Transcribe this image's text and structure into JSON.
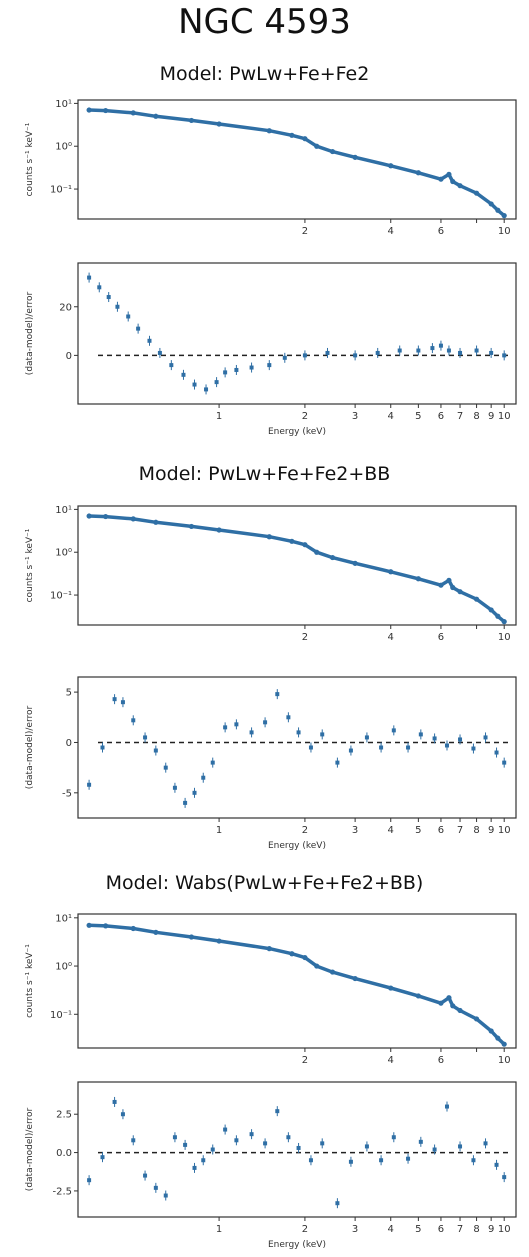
{
  "title": "NGC 4593",
  "chart_data": [
    {
      "type": "scatter",
      "model_title": "Model: PwLw+Fe+Fe2",
      "xscale": "log",
      "xlim": [
        0.32,
        11
      ],
      "xlabel": "Energy (keV)",
      "spectrum": {
        "ylabel": "counts s⁻¹ keV⁻¹",
        "yscale": "log",
        "ylim": [
          0.02,
          12
        ],
        "yticks": [
          {
            "v": 10,
            "label": "10¹"
          },
          {
            "v": 1,
            "label": "10⁰"
          },
          {
            "v": 0.1,
            "label": "10⁻¹"
          }
        ],
        "xticks": [
          {
            "v": 2,
            "label": "2"
          },
          {
            "v": 4,
            "label": "4"
          },
          {
            "v": 6,
            "label": "6"
          },
          {
            "v": 8,
            "label": ""
          },
          {
            "v": 10,
            "label": "10"
          }
        ],
        "x": [
          0.35,
          0.4,
          0.5,
          0.6,
          0.8,
          1.0,
          1.5,
          1.8,
          2.0,
          2.2,
          2.5,
          3.0,
          4.0,
          5.0,
          6.0,
          6.4,
          6.6,
          7.0,
          8.0,
          9.0,
          9.5,
          10.0
        ],
        "y": [
          7.0,
          6.8,
          6.0,
          5.0,
          4.0,
          3.3,
          2.3,
          1.8,
          1.5,
          1.0,
          0.75,
          0.55,
          0.35,
          0.24,
          0.17,
          0.22,
          0.15,
          0.12,
          0.08,
          0.045,
          0.032,
          0.024
        ]
      },
      "residuals": {
        "ylabel": "(data-model)/error",
        "ylim": [
          -20,
          38
        ],
        "yticks": [
          {
            "v": 20,
            "label": "20"
          },
          {
            "v": 0,
            "label": "0"
          }
        ],
        "xticks": [
          {
            "v": 1,
            "label": "1"
          },
          {
            "v": 2,
            "label": "2"
          },
          {
            "v": 3,
            "label": "3"
          },
          {
            "v": 4,
            "label": "4"
          },
          {
            "v": 5,
            "label": "5"
          },
          {
            "v": 6,
            "label": "6"
          },
          {
            "v": 7,
            "label": "7"
          },
          {
            "v": 8,
            "label": "8"
          },
          {
            "v": 9,
            "label": "9"
          },
          {
            "v": 10,
            "label": "10"
          }
        ],
        "x": [
          0.35,
          0.38,
          0.41,
          0.44,
          0.48,
          0.52,
          0.57,
          0.62,
          0.68,
          0.75,
          0.82,
          0.9,
          0.98,
          1.05,
          1.15,
          1.3,
          1.5,
          1.7,
          2.0,
          2.4,
          3.0,
          3.6,
          4.3,
          5.0,
          5.6,
          6.0,
          6.4,
          7.0,
          8.0,
          9.0,
          10.0
        ],
        "y": [
          32,
          28,
          24,
          20,
          16,
          11,
          6,
          1,
          -4,
          -8,
          -12,
          -14,
          -11,
          -7,
          -6,
          -5,
          -4,
          -1,
          0,
          1,
          0,
          1,
          2,
          2,
          3,
          4,
          2,
          1,
          2,
          1,
          0
        ]
      }
    },
    {
      "type": "scatter",
      "model_title": "Model: PwLw+Fe+Fe2+BB",
      "xscale": "log",
      "xlim": [
        0.32,
        11
      ],
      "xlabel": "Energy (keV)",
      "spectrum": {
        "ylabel": "counts s⁻¹ keV⁻¹",
        "yscale": "log",
        "ylim": [
          0.02,
          12
        ],
        "yticks": [
          {
            "v": 10,
            "label": "10¹"
          },
          {
            "v": 1,
            "label": "10⁰"
          },
          {
            "v": 0.1,
            "label": "10⁻¹"
          }
        ],
        "xticks": [
          {
            "v": 2,
            "label": "2"
          },
          {
            "v": 4,
            "label": "4"
          },
          {
            "v": 6,
            "label": "6"
          },
          {
            "v": 8,
            "label": ""
          },
          {
            "v": 10,
            "label": "10"
          }
        ],
        "x": [
          0.35,
          0.4,
          0.5,
          0.6,
          0.8,
          1.0,
          1.5,
          1.8,
          2.0,
          2.2,
          2.5,
          3.0,
          4.0,
          5.0,
          6.0,
          6.4,
          6.6,
          7.0,
          8.0,
          9.0,
          9.5,
          10.0
        ],
        "y": [
          7.0,
          6.8,
          6.0,
          5.0,
          4.0,
          3.3,
          2.3,
          1.8,
          1.5,
          1.0,
          0.75,
          0.55,
          0.35,
          0.24,
          0.17,
          0.22,
          0.15,
          0.12,
          0.08,
          0.045,
          0.032,
          0.024
        ]
      },
      "residuals": {
        "ylabel": "(data-model)/error",
        "ylim": [
          -7.5,
          6.5
        ],
        "yticks": [
          {
            "v": 5,
            "label": "5"
          },
          {
            "v": 0,
            "label": "0"
          },
          {
            "v": -5,
            "label": "-5"
          }
        ],
        "xticks": [
          {
            "v": 1,
            "label": "1"
          },
          {
            "v": 2,
            "label": "2"
          },
          {
            "v": 3,
            "label": "3"
          },
          {
            "v": 4,
            "label": "4"
          },
          {
            "v": 5,
            "label": "5"
          },
          {
            "v": 6,
            "label": "6"
          },
          {
            "v": 7,
            "label": "7"
          },
          {
            "v": 8,
            "label": "8"
          },
          {
            "v": 9,
            "label": "9"
          },
          {
            "v": 10,
            "label": "10"
          }
        ],
        "x": [
          0.35,
          0.39,
          0.43,
          0.46,
          0.5,
          0.55,
          0.6,
          0.65,
          0.7,
          0.76,
          0.82,
          0.88,
          0.95,
          1.05,
          1.15,
          1.3,
          1.45,
          1.6,
          1.75,
          1.9,
          2.1,
          2.3,
          2.6,
          2.9,
          3.3,
          3.7,
          4.1,
          4.6,
          5.1,
          5.7,
          6.3,
          7.0,
          7.8,
          8.6,
          9.4,
          10.0
        ],
        "y": [
          -4.2,
          -0.5,
          4.3,
          4.0,
          2.2,
          0.5,
          -0.8,
          -2.5,
          -4.5,
          -6.0,
          -5.0,
          -3.5,
          -2.0,
          1.5,
          1.8,
          1.0,
          2.0,
          4.8,
          2.5,
          1.0,
          -0.5,
          0.8,
          -2.0,
          -0.8,
          0.5,
          -0.5,
          1.2,
          -0.5,
          0.8,
          0.4,
          -0.3,
          0.3,
          -0.6,
          0.5,
          -1.0,
          -2.0
        ]
      }
    },
    {
      "type": "scatter",
      "model_title": "Model: Wabs(PwLw+Fe+Fe2+BB)",
      "xscale": "log",
      "xlim": [
        0.32,
        11
      ],
      "xlabel": "Energy (keV)",
      "spectrum": {
        "ylabel": "counts s⁻¹ keV⁻¹",
        "yscale": "log",
        "ylim": [
          0.02,
          12
        ],
        "yticks": [
          {
            "v": 10,
            "label": "10¹"
          },
          {
            "v": 1,
            "label": "10⁰"
          },
          {
            "v": 0.1,
            "label": "10⁻¹"
          }
        ],
        "xticks": [
          {
            "v": 2,
            "label": "2"
          },
          {
            "v": 4,
            "label": "4"
          },
          {
            "v": 6,
            "label": "6"
          },
          {
            "v": 8,
            "label": ""
          },
          {
            "v": 10,
            "label": "10"
          }
        ],
        "x": [
          0.35,
          0.4,
          0.5,
          0.6,
          0.8,
          1.0,
          1.5,
          1.8,
          2.0,
          2.2,
          2.5,
          3.0,
          4.0,
          5.0,
          6.0,
          6.4,
          6.6,
          7.0,
          8.0,
          9.0,
          9.5,
          10.0
        ],
        "y": [
          7.0,
          6.8,
          6.0,
          5.0,
          4.0,
          3.3,
          2.3,
          1.8,
          1.5,
          1.0,
          0.75,
          0.55,
          0.35,
          0.24,
          0.17,
          0.22,
          0.15,
          0.12,
          0.08,
          0.045,
          0.032,
          0.024
        ]
      },
      "residuals": {
        "ylabel": "(data-model)/error",
        "ylim": [
          -4.2,
          4.6
        ],
        "yticks": [
          {
            "v": 2.5,
            "label": "2.5"
          },
          {
            "v": 0,
            "label": "0.0"
          },
          {
            "v": -2.5,
            "label": "-2.5"
          }
        ],
        "xticks": [
          {
            "v": 1,
            "label": "1"
          },
          {
            "v": 2,
            "label": "2"
          },
          {
            "v": 3,
            "label": "3"
          },
          {
            "v": 4,
            "label": "4"
          },
          {
            "v": 5,
            "label": "5"
          },
          {
            "v": 6,
            "label": "6"
          },
          {
            "v": 7,
            "label": "7"
          },
          {
            "v": 8,
            "label": "8"
          },
          {
            "v": 9,
            "label": "9"
          },
          {
            "v": 10,
            "label": "10"
          }
        ],
        "x": [
          0.35,
          0.39,
          0.43,
          0.46,
          0.5,
          0.55,
          0.6,
          0.65,
          0.7,
          0.76,
          0.82,
          0.88,
          0.95,
          1.05,
          1.15,
          1.3,
          1.45,
          1.6,
          1.75,
          1.9,
          2.1,
          2.3,
          2.6,
          2.9,
          3.3,
          3.7,
          4.1,
          4.6,
          5.1,
          5.7,
          6.3,
          7.0,
          7.8,
          8.6,
          9.4,
          10.0
        ],
        "y": [
          -1.8,
          -0.3,
          3.3,
          2.5,
          0.8,
          -1.5,
          -2.3,
          -2.8,
          1.0,
          0.5,
          -1.0,
          -0.5,
          0.2,
          1.5,
          0.8,
          1.2,
          0.6,
          2.7,
          1.0,
          0.3,
          -0.5,
          0.6,
          -3.3,
          -0.6,
          0.4,
          -0.5,
          1.0,
          -0.4,
          0.7,
          0.2,
          3.0,
          0.4,
          -0.5,
          0.6,
          -0.8,
          -1.6
        ]
      }
    }
  ]
}
